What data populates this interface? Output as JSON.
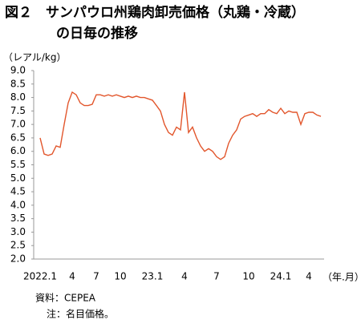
{
  "chart_data": {
    "type": "line",
    "title": [
      "図２　サンパウロ州鶏肉卸売価格（丸鶏・冷蔵）",
      "の日毎の推移"
    ],
    "y_label": "（レアル/kg）",
    "x_label": "（年.月）",
    "notes": [
      "資料：CEPEA",
      "注：名目価格。"
    ],
    "categories": [
      "2022.1",
      null,
      null,
      null,
      null,
      null,
      null,
      null,
      "4",
      null,
      null,
      null,
      null,
      null,
      "7",
      null,
      null,
      null,
      null,
      null,
      "10",
      null,
      null,
      null,
      null,
      null,
      null,
      null,
      "23.1",
      null,
      null,
      null,
      null,
      null,
      null,
      null,
      "4",
      null,
      null,
      null,
      null,
      null,
      null,
      null,
      "7",
      null,
      null,
      null,
      null,
      null,
      null,
      null,
      "10",
      null,
      null,
      null,
      null,
      null,
      null,
      null,
      "24.1",
      null,
      null,
      null,
      null,
      null,
      null,
      "4",
      null,
      null,
      null
    ],
    "series": [
      {
        "name": "丸鶏・冷蔵",
        "color": "#e2562c",
        "values": [
          6.5,
          5.9,
          5.85,
          5.9,
          6.2,
          6.15,
          7.0,
          7.8,
          8.2,
          8.1,
          7.8,
          7.7,
          7.7,
          7.75,
          8.1,
          8.1,
          8.05,
          8.1,
          8.05,
          8.1,
          8.05,
          8.0,
          8.05,
          8.0,
          8.05,
          8.0,
          8.0,
          7.95,
          7.9,
          7.7,
          7.5,
          7.0,
          6.7,
          6.6,
          6.9,
          6.8,
          8.2,
          6.7,
          6.9,
          6.5,
          6.2,
          6.0,
          6.1,
          6.0,
          5.8,
          5.7,
          5.8,
          6.3,
          6.6,
          6.8,
          7.2,
          7.3,
          7.35,
          7.4,
          7.3,
          7.4,
          7.4,
          7.55,
          7.45,
          7.4,
          7.6,
          7.4,
          7.5,
          7.45,
          7.45,
          7.0,
          7.4,
          7.45,
          7.45,
          7.35,
          7.3
        ]
      }
    ],
    "ylim": [
      2,
      9
    ],
    "yticks": [
      {
        "value": 9,
        "label": "9.0"
      },
      {
        "value": 8.5,
        "label": "8.5"
      },
      {
        "value": 8,
        "label": "8.0"
      },
      {
        "value": 7.5,
        "label": "7.5"
      },
      {
        "value": 7,
        "label": "7.0"
      },
      {
        "value": 6.5,
        "label": "6.5"
      },
      {
        "value": 6,
        "label": "6.0"
      },
      {
        "value": 5.5,
        "label": "5.5"
      },
      {
        "value": 5,
        "label": "5.0"
      },
      {
        "value": 4.5,
        "label": "4.5"
      },
      {
        "value": 4,
        "label": "4.0"
      },
      {
        "value": 3.5,
        "label": "3.5"
      },
      {
        "value": 3,
        "label": "3.0"
      },
      {
        "value": 2.5,
        "label": "2.5"
      },
      {
        "value": 2,
        "label": "2.0"
      }
    ],
    "grid": false
  }
}
